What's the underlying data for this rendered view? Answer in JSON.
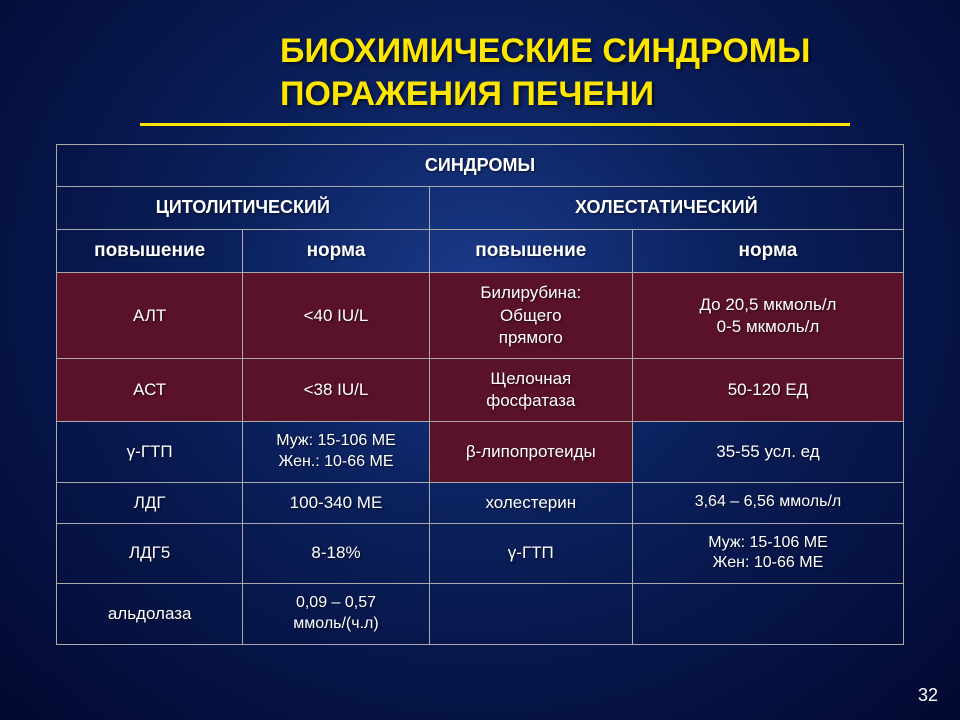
{
  "title_line1": "БИОХИМИЧЕСКИЕ СИНДРОМЫ",
  "title_line2": "ПОРАЖЕНИЯ ПЕЧЕНИ",
  "headers": {
    "syndromes": "СИНДРОМЫ",
    "cytolytic": "ЦИТОЛИТИЧЕСКИЙ",
    "cholestatic": "ХОЛЕСТАТИЧЕСКИЙ",
    "increase": "повышение",
    "normal": "норма"
  },
  "rows": [
    {
      "c0": "АЛТ",
      "c1": "<40 IU/L",
      "c2": "Билирубина:\nОбщего\nпрямого",
      "c3": "До 20,5 мкмоль/л\n0-5 мкмоль/л",
      "highlight": true
    },
    {
      "c0": "АСТ",
      "c1": "<38 IU/L",
      "c2": "Щелочная\nфосфатаза",
      "c3": "50-120 ЕД",
      "highlight": true
    },
    {
      "c0": "γ-ГТП",
      "c1": "Муж: 15-106 МЕ\nЖен.: 10-66 МЕ",
      "c2": "β-липопротеиды",
      "c3": "35-55 усл. ед",
      "highlight2": true
    },
    {
      "c0": "ЛДГ",
      "c1": "100-340 МЕ",
      "c2": "холестерин",
      "c3": "3,64 – 6,56 ммоль/л"
    },
    {
      "c0": "ЛДГ5",
      "c1": "8-18%",
      "c2": "γ-ГТП",
      "c3": "Муж: 15-106 МЕ\nЖен: 10-66 МЕ"
    },
    {
      "c0": "альдолаза",
      "c1": "0,09 – 0,57\nммоль/(ч.л)",
      "c2": "",
      "c3": ""
    }
  ],
  "slide_number": "32",
  "colors": {
    "title": "#ffe600",
    "text": "#ffffff",
    "maroon": "#5a1228",
    "border": "#aaaaaa"
  }
}
